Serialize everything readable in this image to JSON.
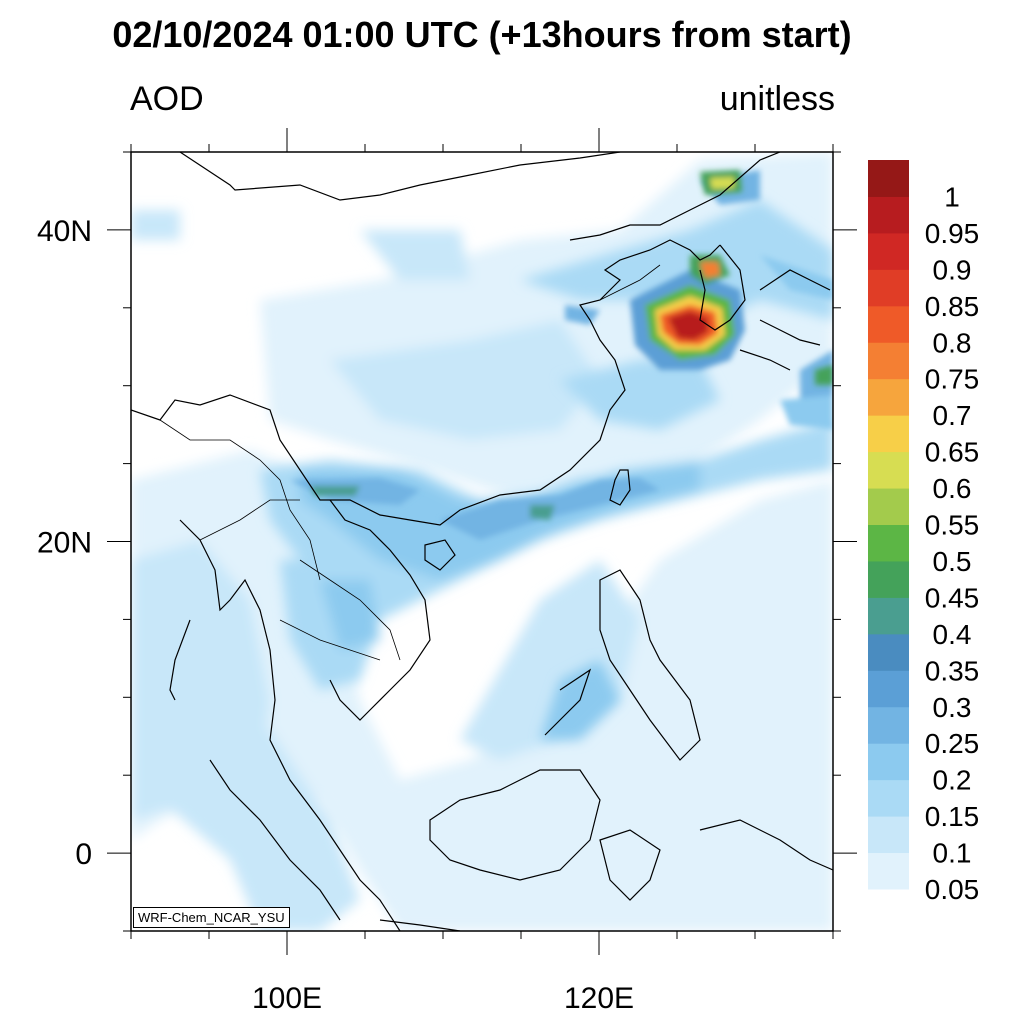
{
  "title": "02/10/2024 01:00 UTC (+13hours from start)",
  "variable_label": "AOD",
  "units_label": "unitless",
  "credit": "WRF-Chem_NCAR_YSU",
  "map": {
    "lon_range": [
      90,
      135
    ],
    "lat_range": [
      -5,
      45
    ],
    "lon_ticks": [
      {
        "value": 100,
        "label": "100E"
      },
      {
        "value": 120,
        "label": "120E"
      }
    ],
    "lat_ticks": [
      {
        "value": 0,
        "label": "0"
      },
      {
        "value": 20,
        "label": "20N"
      },
      {
        "value": 40,
        "label": "40N"
      }
    ],
    "lon_minor_step": 5,
    "lat_minor_step": 5
  },
  "colorbar": {
    "labels": [
      "0.05",
      "0.1",
      "0.15",
      "0.2",
      "0.25",
      "0.3",
      "0.35",
      "0.4",
      "0.45",
      "0.5",
      "0.55",
      "0.6",
      "0.65",
      "0.7",
      "0.75",
      "0.8",
      "0.85",
      "0.9",
      "0.95",
      "1"
    ],
    "colors": [
      "#e1f2fc",
      "#c8e7f9",
      "#aadaf5",
      "#8ccaef",
      "#72b4e3",
      "#5b9fd6",
      "#4a8cc0",
      "#4a9e90",
      "#44a25a",
      "#5cb645",
      "#a3cb4c",
      "#d7dd52",
      "#f7cf48",
      "#f6a53d",
      "#f47f33",
      "#ef5a28",
      "#e03d26",
      "#d02824",
      "#b71c1f",
      "#951817"
    ]
  }
}
